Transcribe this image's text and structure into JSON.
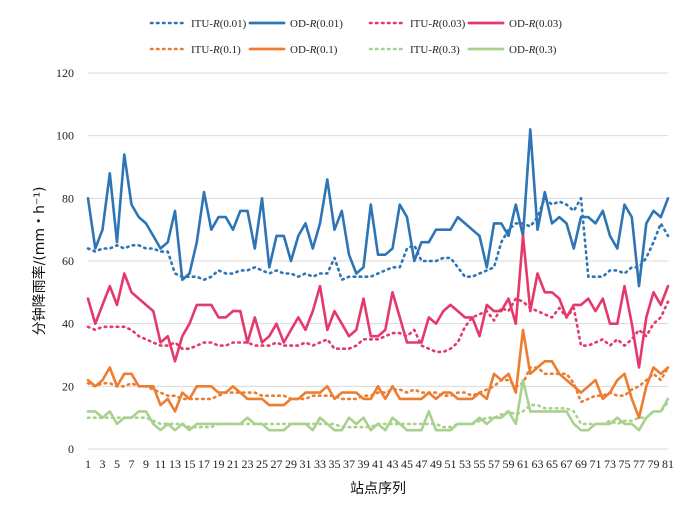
{
  "chart_data": {
    "type": "line",
    "xlabel": "站点序列",
    "ylabel": "分钟降雨率/(mm・h⁻¹)",
    "ylim": [
      0,
      120
    ],
    "yticks": [
      0,
      20,
      40,
      60,
      80,
      100,
      120
    ],
    "xlim": [
      1,
      81
    ],
    "xticks": [
      1,
      3,
      5,
      7,
      9,
      11,
      13,
      15,
      17,
      19,
      21,
      23,
      25,
      27,
      29,
      31,
      33,
      35,
      37,
      39,
      41,
      43,
      45,
      47,
      49,
      51,
      53,
      55,
      57,
      59,
      61,
      63,
      65,
      67,
      69,
      71,
      73,
      75,
      77,
      79,
      81
    ],
    "grid": "horizontal",
    "legend_position": "top",
    "x": [
      1,
      2,
      3,
      4,
      5,
      6,
      7,
      8,
      9,
      10,
      11,
      12,
      13,
      14,
      15,
      16,
      17,
      18,
      19,
      20,
      21,
      22,
      23,
      24,
      25,
      26,
      27,
      28,
      29,
      30,
      31,
      32,
      33,
      34,
      35,
      36,
      37,
      38,
      39,
      40,
      41,
      42,
      43,
      44,
      45,
      46,
      47,
      48,
      49,
      50,
      51,
      52,
      53,
      54,
      55,
      56,
      57,
      58,
      59,
      60,
      61,
      62,
      63,
      64,
      65,
      66,
      67,
      68,
      69,
      70,
      71,
      72,
      73,
      74,
      75,
      76,
      77,
      78,
      79,
      80,
      81
    ],
    "series": [
      {
        "name": "ITU-R(0.01)",
        "color": "#2e75b6",
        "dash": true,
        "values": [
          64,
          63,
          64,
          64,
          65,
          64,
          65,
          65,
          64,
          64,
          63,
          63,
          56,
          55,
          55,
          55,
          54,
          55,
          57,
          56,
          56,
          57,
          57,
          58,
          57,
          56,
          57,
          56,
          56,
          55,
          56,
          55,
          56,
          56,
          61,
          54,
          55,
          55,
          55,
          55,
          56,
          57,
          58,
          58,
          64,
          65,
          60,
          60,
          60,
          61,
          61,
          58,
          55,
          55,
          56,
          57,
          58,
          66,
          70,
          72,
          72,
          71,
          74,
          80,
          78,
          79,
          78,
          76,
          80,
          55,
          55,
          55,
          57,
          57,
          56,
          58,
          58,
          61,
          66,
          72,
          68
        ]
      },
      {
        "name": "OD-R(0.01)",
        "color": "#2e75b6",
        "dash": false,
        "values": [
          80,
          64,
          70,
          88,
          66,
          94,
          78,
          74,
          72,
          68,
          64,
          66,
          76,
          54,
          56,
          66,
          82,
          70,
          74,
          74,
          70,
          76,
          76,
          64,
          80,
          58,
          68,
          68,
          60,
          68,
          72,
          64,
          72,
          86,
          70,
          76,
          62,
          56,
          58,
          78,
          62,
          62,
          64,
          78,
          74,
          60,
          66,
          66,
          70,
          70,
          70,
          74,
          72,
          70,
          68,
          58,
          72,
          72,
          68,
          78,
          68,
          102,
          70,
          82,
          72,
          74,
          72,
          64,
          74,
          74,
          72,
          76,
          68,
          64,
          78,
          74,
          52,
          72,
          76,
          74,
          80
        ]
      },
      {
        "name": "ITU-R(0.03)",
        "color": "#e5386b",
        "dash": true,
        "values": [
          39,
          38,
          39,
          39,
          39,
          39,
          38,
          36,
          35,
          34,
          33,
          33,
          34,
          32,
          32,
          33,
          34,
          34,
          33,
          33,
          34,
          34,
          34,
          33,
          33,
          33,
          34,
          33,
          33,
          33,
          34,
          33,
          34,
          35,
          32,
          32,
          32,
          33,
          35,
          35,
          35,
          36,
          37,
          37,
          36,
          38,
          33,
          32,
          31,
          31,
          32,
          34,
          39,
          42,
          43,
          44,
          41,
          45,
          44,
          48,
          47,
          45,
          44,
          43,
          42,
          45,
          42,
          45,
          33,
          33,
          34,
          35,
          33,
          35,
          33,
          35,
          38,
          36,
          40,
          42,
          47
        ]
      },
      {
        "name": "OD-R(0.03)",
        "color": "#e5386b",
        "dash": false,
        "values": [
          48,
          40,
          46,
          52,
          46,
          56,
          50,
          48,
          46,
          44,
          34,
          36,
          28,
          36,
          40,
          46,
          46,
          46,
          42,
          42,
          44,
          44,
          34,
          42,
          34,
          36,
          40,
          34,
          38,
          42,
          38,
          44,
          52,
          38,
          44,
          40,
          36,
          38,
          48,
          36,
          36,
          38,
          50,
          42,
          34,
          34,
          34,
          42,
          40,
          44,
          46,
          44,
          42,
          42,
          36,
          46,
          44,
          44,
          48,
          40,
          68,
          44,
          56,
          50,
          50,
          48,
          42,
          46,
          46,
          48,
          44,
          48,
          40,
          40,
          52,
          40,
          26,
          42,
          50,
          46,
          52
        ]
      },
      {
        "name": "ITU-R(0.1)",
        "color": "#ed7d31",
        "dash": true,
        "values": [
          21,
          20,
          21,
          21,
          20,
          20,
          21,
          20,
          20,
          19,
          18,
          17,
          17,
          16,
          16,
          16,
          16,
          16,
          17,
          18,
          18,
          18,
          18,
          18,
          17,
          17,
          17,
          17,
          16,
          16,
          16,
          17,
          17,
          17,
          17,
          16,
          16,
          16,
          17,
          17,
          18,
          18,
          19,
          19,
          18,
          19,
          18,
          18,
          18,
          17,
          17,
          18,
          18,
          17,
          18,
          19,
          20,
          22,
          22,
          20,
          21,
          26,
          26,
          24,
          24,
          24,
          24,
          21,
          15,
          16,
          17,
          17,
          18,
          17,
          17,
          19,
          20,
          22,
          24,
          22,
          26
        ]
      },
      {
        "name": "OD-R(0.1)",
        "color": "#ed7d31",
        "dash": false,
        "values": [
          22,
          20,
          22,
          26,
          20,
          24,
          24,
          20,
          20,
          20,
          14,
          16,
          12,
          18,
          16,
          20,
          20,
          20,
          18,
          18,
          20,
          18,
          16,
          16,
          16,
          14,
          14,
          14,
          16,
          16,
          18,
          18,
          18,
          20,
          16,
          18,
          18,
          18,
          16,
          16,
          20,
          16,
          20,
          16,
          16,
          16,
          16,
          18,
          16,
          18,
          18,
          16,
          16,
          16,
          18,
          16,
          24,
          22,
          24,
          18,
          38,
          24,
          26,
          28,
          28,
          24,
          22,
          20,
          18,
          20,
          22,
          16,
          18,
          22,
          24,
          16,
          10,
          20,
          26,
          24,
          26
        ]
      },
      {
        "name": "ITU-R(0.3)",
        "color": "#a9d18e",
        "dash": true,
        "values": [
          10,
          10,
          10,
          10,
          10,
          10,
          10,
          10,
          10,
          9,
          8,
          8,
          8,
          8,
          7,
          7,
          7,
          7,
          8,
          8,
          8,
          8,
          8,
          8,
          8,
          8,
          8,
          8,
          8,
          8,
          8,
          8,
          8,
          8,
          8,
          7,
          7,
          7,
          7,
          7,
          8,
          8,
          8,
          8,
          8,
          8,
          8,
          8,
          8,
          7,
          7,
          8,
          8,
          8,
          9,
          10,
          10,
          11,
          12,
          11,
          12,
          14,
          14,
          13,
          13,
          13,
          13,
          12,
          8,
          8,
          8,
          8,
          9,
          8,
          9,
          9,
          10,
          10,
          12,
          12,
          15
        ]
      },
      {
        "name": "OD-R(0.3)",
        "color": "#a9d18e",
        "dash": false,
        "values": [
          12,
          12,
          10,
          12,
          8,
          10,
          10,
          12,
          12,
          8,
          6,
          8,
          6,
          8,
          6,
          8,
          8,
          8,
          8,
          8,
          8,
          8,
          10,
          8,
          8,
          6,
          6,
          6,
          8,
          8,
          8,
          6,
          10,
          8,
          6,
          6,
          10,
          8,
          10,
          6,
          8,
          6,
          10,
          8,
          6,
          6,
          6,
          12,
          6,
          6,
          6,
          8,
          8,
          8,
          10,
          8,
          10,
          10,
          12,
          8,
          22,
          12,
          12,
          12,
          12,
          12,
          12,
          8,
          6,
          6,
          8,
          8,
          8,
          10,
          8,
          8,
          6,
          10,
          12,
          12,
          16
        ]
      }
    ]
  }
}
